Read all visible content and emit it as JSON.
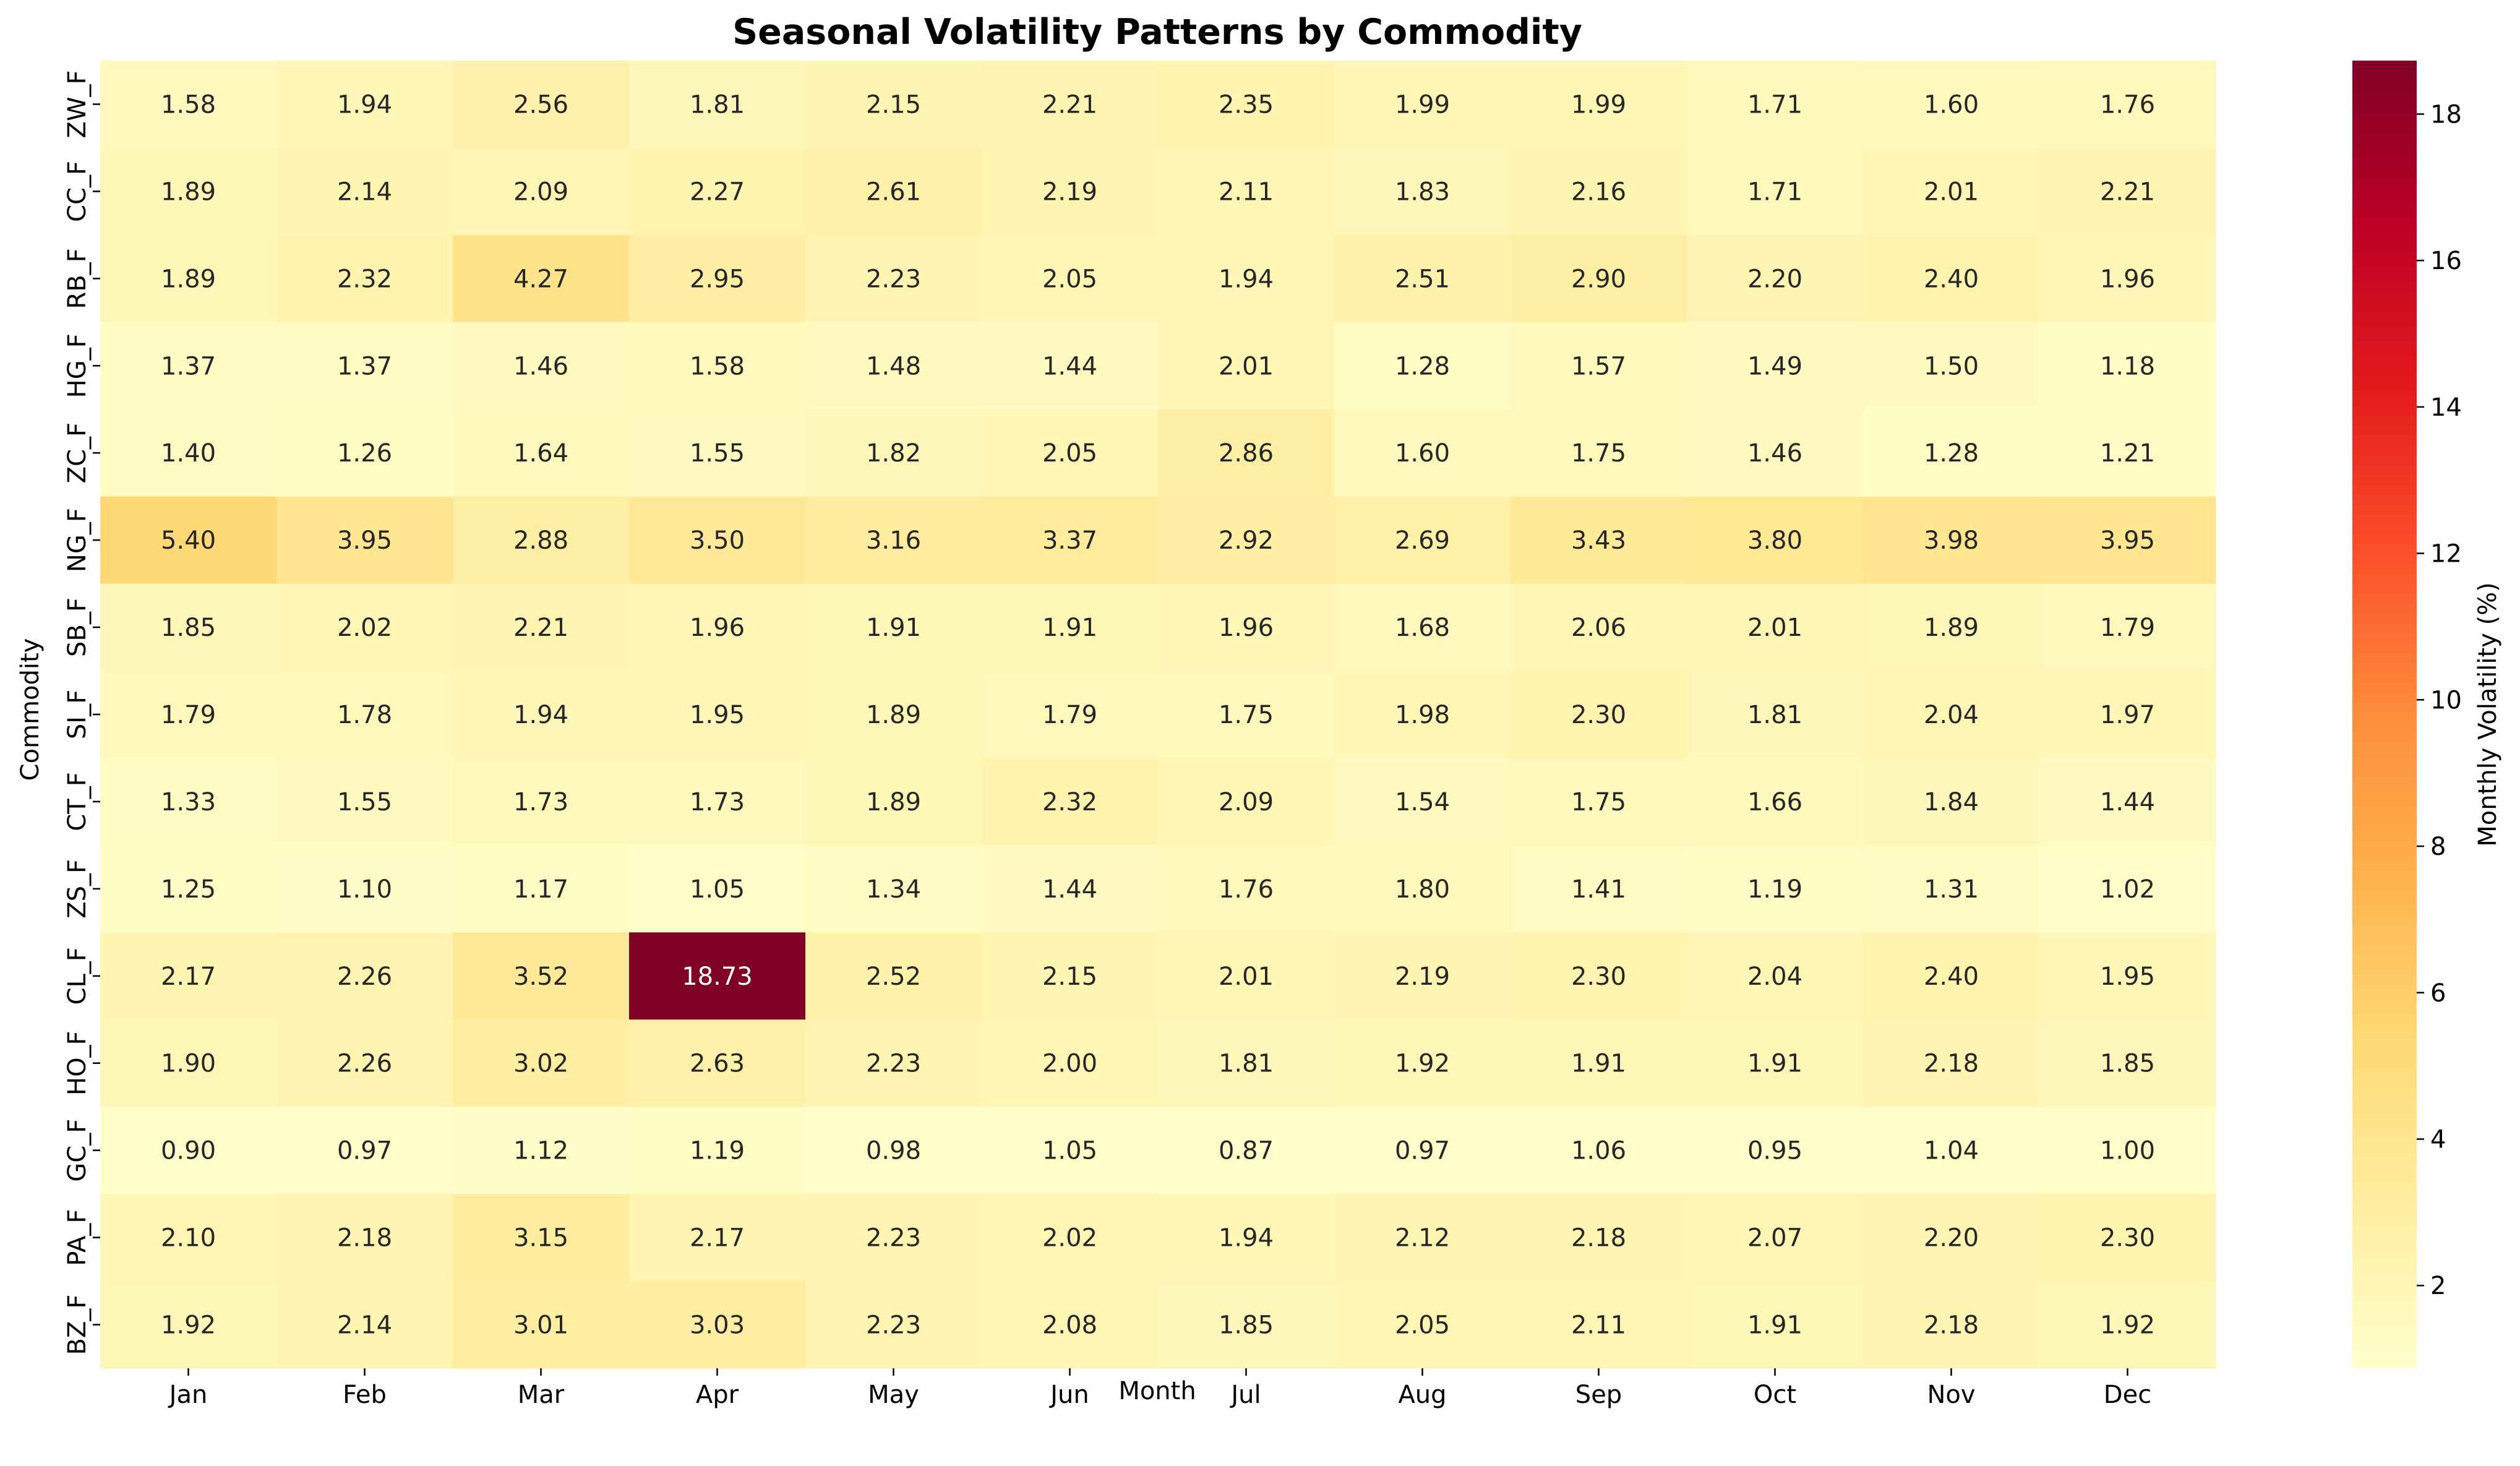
{
  "chart_data": {
    "type": "heatmap",
    "title": "Seasonal Volatility Patterns by Commodity",
    "xlabel": "Month",
    "ylabel": "Commodity",
    "colorbar_label": "Monthly Volatility (%)",
    "colormap": "YlOrRd",
    "colorbar_range": [
      0.87,
      18.73
    ],
    "colorbar_ticks": [
      2,
      4,
      6,
      8,
      10,
      12,
      14,
      16,
      18
    ],
    "months": [
      "Jan",
      "Feb",
      "Mar",
      "Apr",
      "May",
      "Jun",
      "Jul",
      "Aug",
      "Sep",
      "Oct",
      "Nov",
      "Dec"
    ],
    "commodities": [
      "ZW_F",
      "CC_F",
      "RB_F",
      "HG_F",
      "ZC_F",
      "NG_F",
      "SB_F",
      "SI_F",
      "CT_F",
      "ZS_F",
      "CL_F",
      "HO_F",
      "GC_F",
      "PA_F",
      "BZ_F"
    ],
    "values": [
      [
        1.58,
        1.94,
        2.56,
        1.81,
        2.15,
        2.21,
        2.35,
        1.99,
        1.99,
        1.71,
        1.6,
        1.76
      ],
      [
        1.89,
        2.14,
        2.09,
        2.27,
        2.61,
        2.19,
        2.11,
        1.83,
        2.16,
        1.71,
        2.01,
        2.21
      ],
      [
        1.89,
        2.32,
        4.27,
        2.95,
        2.23,
        2.05,
        1.94,
        2.51,
        2.9,
        2.2,
        2.4,
        1.96
      ],
      [
        1.37,
        1.37,
        1.46,
        1.58,
        1.48,
        1.44,
        2.01,
        1.28,
        1.57,
        1.49,
        1.5,
        1.18
      ],
      [
        1.4,
        1.26,
        1.64,
        1.55,
        1.82,
        2.05,
        2.86,
        1.6,
        1.75,
        1.46,
        1.28,
        1.21
      ],
      [
        5.4,
        3.95,
        2.88,
        3.5,
        3.16,
        3.37,
        2.92,
        2.69,
        3.43,
        3.8,
        3.98,
        3.95
      ],
      [
        1.85,
        2.02,
        2.21,
        1.96,
        1.91,
        1.91,
        1.96,
        1.68,
        2.06,
        2.01,
        1.89,
        1.79
      ],
      [
        1.79,
        1.78,
        1.94,
        1.95,
        1.89,
        1.79,
        1.75,
        1.98,
        2.3,
        1.81,
        2.04,
        1.97
      ],
      [
        1.33,
        1.55,
        1.73,
        1.73,
        1.89,
        2.32,
        2.09,
        1.54,
        1.75,
        1.66,
        1.84,
        1.44
      ],
      [
        1.25,
        1.1,
        1.17,
        1.05,
        1.34,
        1.44,
        1.76,
        1.8,
        1.41,
        1.19,
        1.31,
        1.02
      ],
      [
        2.17,
        2.26,
        3.52,
        18.73,
        2.52,
        2.15,
        2.01,
        2.19,
        2.3,
        2.04,
        2.4,
        1.95
      ],
      [
        1.9,
        2.26,
        3.02,
        2.63,
        2.23,
        2.0,
        1.81,
        1.92,
        1.91,
        1.91,
        2.18,
        1.85
      ],
      [
        0.9,
        0.97,
        1.12,
        1.19,
        0.98,
        1.05,
        0.87,
        0.97,
        1.06,
        0.95,
        1.04,
        1.0
      ],
      [
        2.1,
        2.18,
        3.15,
        2.17,
        2.23,
        2.02,
        1.94,
        2.12,
        2.18,
        2.07,
        2.2,
        2.3
      ],
      [
        1.92,
        2.14,
        3.01,
        3.03,
        2.23,
        2.08,
        1.85,
        2.05,
        2.11,
        1.91,
        2.18,
        1.92
      ]
    ]
  }
}
